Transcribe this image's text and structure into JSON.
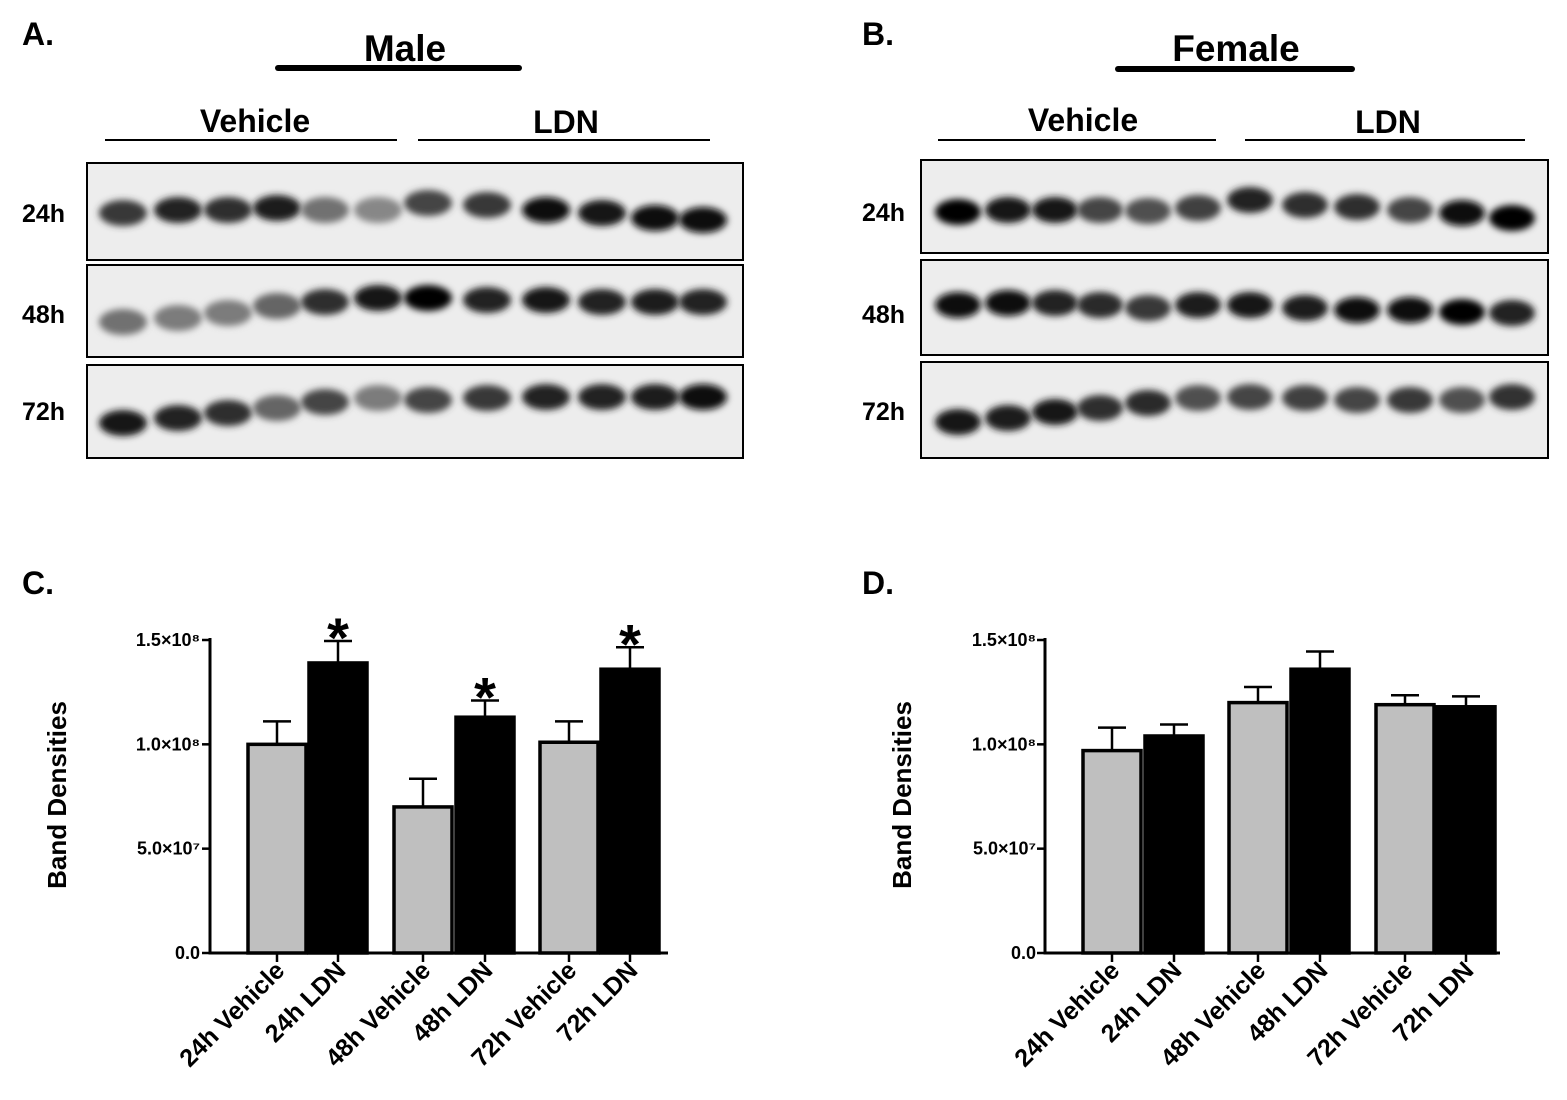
{
  "blots": [
    {
      "panel_label": "A.",
      "title": "Male",
      "groups": [
        "Vehicle",
        "LDN"
      ],
      "rows": [
        {
          "label": "24h",
          "band_darkness": [
            0.75,
            0.85,
            0.8,
            0.88,
            0.5,
            0.4,
            0.7,
            0.75,
            0.95,
            0.9,
            0.95,
            0.97
          ]
        },
        {
          "label": "48h",
          "band_darkness": [
            0.5,
            0.45,
            0.45,
            0.55,
            0.8,
            0.92,
            0.98,
            0.85,
            0.9,
            0.85,
            0.88,
            0.85
          ]
        },
        {
          "label": "72h",
          "band_darkness": [
            0.9,
            0.85,
            0.8,
            0.55,
            0.7,
            0.45,
            0.7,
            0.75,
            0.85,
            0.85,
            0.88,
            0.95
          ]
        }
      ]
    },
    {
      "panel_label": "B.",
      "title": "Female",
      "groups": [
        "Vehicle",
        "LDN"
      ],
      "rows": [
        {
          "label": "24h",
          "band_darkness": [
            0.98,
            0.9,
            0.92,
            0.7,
            0.65,
            0.72,
            0.85,
            0.8,
            0.8,
            0.7,
            0.97,
            0.98
          ]
        },
        {
          "label": "48h",
          "band_darkness": [
            0.95,
            0.97,
            0.85,
            0.82,
            0.75,
            0.88,
            0.9,
            0.88,
            0.97,
            0.95,
            0.99,
            0.85
          ]
        },
        {
          "label": "72h",
          "band_darkness": [
            0.9,
            0.88,
            0.9,
            0.8,
            0.82,
            0.65,
            0.7,
            0.72,
            0.7,
            0.75,
            0.65,
            0.78
          ]
        }
      ]
    }
  ],
  "chart_data": [
    {
      "panel_label": "C.",
      "type": "bar",
      "categories": [
        "24h Vehicle",
        "24h LDN",
        "48h Vehicle",
        "48h LDN",
        "72h Vehicle",
        "72h LDN"
      ],
      "values": [
        100000000,
        139000000,
        70000000,
        113000000,
        101000000,
        136000000
      ],
      "errors": [
        11000000,
        10500000,
        13500000,
        8000000,
        10000000,
        10500000
      ],
      "significant": [
        false,
        true,
        false,
        true,
        false,
        true
      ],
      "significance_marker": "*",
      "ylabel": "Band Densities",
      "ylim": [
        0,
        150000000
      ],
      "yticks": [
        0,
        50000000,
        100000000,
        150000000
      ],
      "ytick_labels": [
        "0.0",
        "5.0×10⁷",
        "1.0×10⁸",
        "1.5×10⁸"
      ],
      "bar_colors": [
        "#bfbfbf",
        "#000000",
        "#bfbfbf",
        "#000000",
        "#bfbfbf",
        "#000000"
      ]
    },
    {
      "panel_label": "D.",
      "type": "bar",
      "categories": [
        "24h Vehicle",
        "24h LDN",
        "48h Vehicle",
        "48h LDN",
        "72h Vehicle",
        "72h LDN"
      ],
      "values": [
        97000000,
        104000000,
        120000000,
        136000000,
        119000000,
        118000000
      ],
      "errors": [
        11000000,
        5500000,
        7500000,
        8500000,
        4500000,
        5000000
      ],
      "significant": [
        false,
        false,
        false,
        false,
        false,
        false
      ],
      "significance_marker": "*",
      "ylabel": "Band Densities",
      "ylim": [
        0,
        150000000
      ],
      "yticks": [
        0,
        50000000,
        100000000,
        150000000
      ],
      "ytick_labels": [
        "0.0",
        "5.0×10⁷",
        "1.0×10⁸",
        "1.5×10⁸"
      ],
      "bar_colors": [
        "#bfbfbf",
        "#000000",
        "#bfbfbf",
        "#000000",
        "#bfbfbf",
        "#000000"
      ]
    }
  ]
}
